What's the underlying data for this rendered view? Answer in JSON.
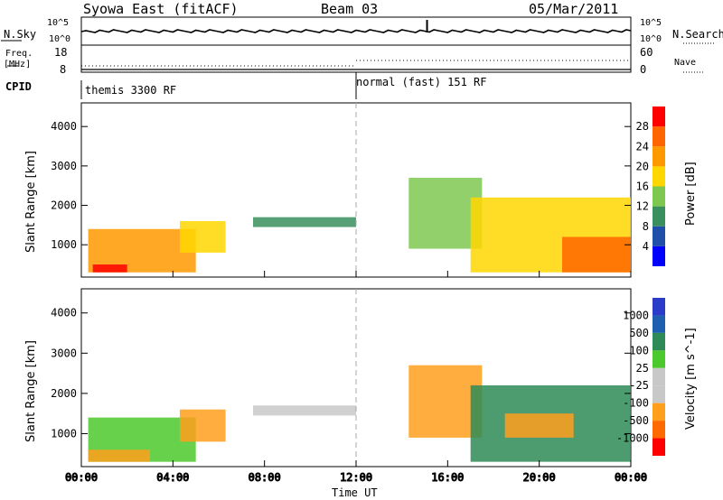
{
  "header": {
    "station": "Syowa East (fitACF)",
    "beam": "Beam 03",
    "date": "05/Mar/2011"
  },
  "summary_panels": {
    "nsky_label": "N.Sky",
    "nsky_ticks": [
      "10^5",
      "10^0"
    ],
    "nsearch_label": "N.Search",
    "nsearch_ticks": [
      "10^5",
      "10^0"
    ],
    "freq_label_1": "Freq.",
    "freq_label_2": "[MHz]",
    "freq_ticks": [
      "18",
      "8"
    ],
    "nave_label": "Nave",
    "nave_ticks": [
      "60",
      "0"
    ],
    "cpid_label": "CPID",
    "cpid_segments": [
      {
        "text": "themis 3300 RF",
        "start_hour": 0
      },
      {
        "text": "normal (fast) 151 RF",
        "start_hour": 12
      }
    ]
  },
  "colors": {
    "power": [
      "#0000ff",
      "#1f4fa8",
      "#3a8f5e",
      "#7ec850",
      "#ffd700",
      "#ff9900",
      "#ff6600",
      "#ff0000"
    ],
    "velocity": [
      "#ff0000",
      "#ff6a00",
      "#ff9f1c",
      "#c8c8c8",
      "#c8c8c8",
      "#4cc92c",
      "#2e8b57",
      "#1f5fb0",
      "#2a3cc8"
    ]
  },
  "chart_data": [
    {
      "type": "heatmap",
      "panel": "power",
      "ylabel": "Slant Range [km]",
      "xlim": [
        0,
        24
      ],
      "ylim": [
        180,
        4600
      ],
      "yticks": [
        1000,
        2000,
        3000,
        4000
      ],
      "colorbar_label": "Power [dB]",
      "colorbar_ticks": [
        "4",
        "8",
        "12",
        "16",
        "20",
        "24",
        "28"
      ],
      "clim": [
        0,
        32
      ],
      "regions": [
        {
          "t": [
            0.3,
            5.0
          ],
          "r": [
            300,
            1400
          ],
          "v": 20
        },
        {
          "t": [
            0.5,
            2.0
          ],
          "r": [
            300,
            500
          ],
          "v": 28
        },
        {
          "t": [
            4.3,
            6.3
          ],
          "r": [
            800,
            1600
          ],
          "v": 18
        },
        {
          "t": [
            7.5,
            12.0
          ],
          "r": [
            1450,
            1700
          ],
          "v": 8
        },
        {
          "t": [
            14.3,
            17.5
          ],
          "r": [
            900,
            2700
          ],
          "v": 14
        },
        {
          "t": [
            17.0,
            24.0
          ],
          "r": [
            300,
            2200
          ],
          "v": 16
        },
        {
          "t": [
            21.0,
            24.0
          ],
          "r": [
            300,
            1200
          ],
          "v": 24
        }
      ]
    },
    {
      "type": "heatmap",
      "panel": "velocity",
      "ylabel": "Slant Range [km]",
      "xlabel": "Time UT",
      "xlim": [
        0,
        24
      ],
      "ylim": [
        180,
        4600
      ],
      "yticks": [
        1000,
        2000,
        3000,
        4000
      ],
      "xticks": [
        "00:00",
        "04:00",
        "08:00",
        "12:00",
        "16:00",
        "20:00",
        "00:00"
      ],
      "colorbar_label": "Velocity [m s^-1]",
      "colorbar_ticks": [
        "1000",
        "500",
        "100",
        "25",
        "-25",
        "-100",
        "-500",
        "-1000"
      ],
      "regions": [
        {
          "t": [
            0.3,
            5.0
          ],
          "r": [
            300,
            1400
          ],
          "v": 100
        },
        {
          "t": [
            0.3,
            3.0
          ],
          "r": [
            300,
            600
          ],
          "v": -300
        },
        {
          "t": [
            4.3,
            6.3
          ],
          "r": [
            800,
            1600
          ],
          "v": -300
        },
        {
          "t": [
            7.5,
            12.0
          ],
          "r": [
            1450,
            1700
          ],
          "v": 0
        },
        {
          "t": [
            14.3,
            17.5
          ],
          "r": [
            900,
            2700
          ],
          "v": -200
        },
        {
          "t": [
            17.0,
            24.0
          ],
          "r": [
            300,
            2200
          ],
          "v": 200
        },
        {
          "t": [
            18.5,
            21.5
          ],
          "r": [
            900,
            1500
          ],
          "v": -300
        }
      ]
    }
  ]
}
